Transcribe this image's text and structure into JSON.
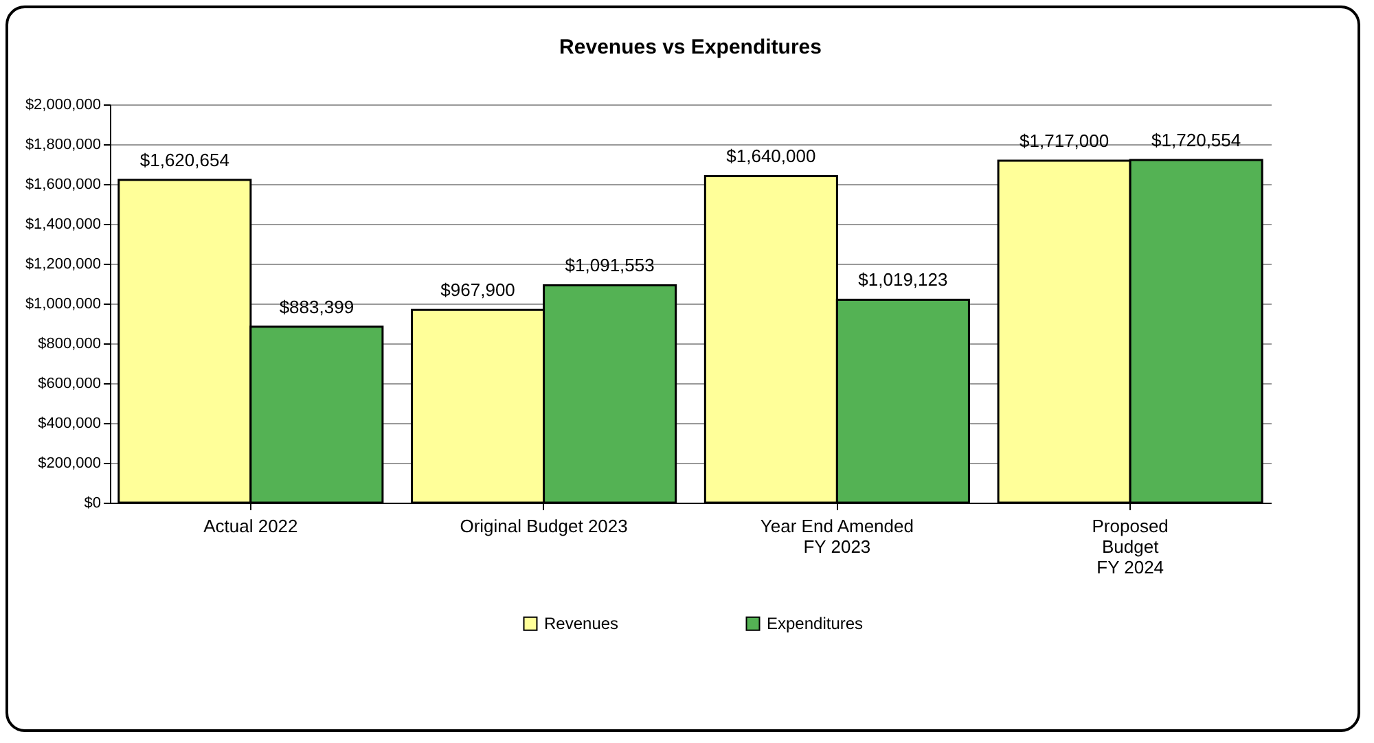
{
  "chart_data": {
    "type": "bar",
    "title": "Revenues vs Expenditures",
    "categories": [
      "Actual 2022",
      "Original Budget 2023",
      "Year End Amended\nFY 2023",
      "Proposed\nBudget\nFY 2024"
    ],
    "series": [
      {
        "name": "Revenues",
        "color": "#ffff99",
        "values": [
          1620654,
          967900,
          1640000,
          1717000
        ],
        "value_labels": [
          "$1,620,654",
          "$967,900",
          "$1,640,000",
          "$1,717,000"
        ]
      },
      {
        "name": "Expenditures",
        "color": "#54b254",
        "values": [
          883399,
          1091553,
          1019123,
          1720554
        ],
        "value_labels": [
          "$883,399",
          "$1,091,553",
          "$1,019,123",
          "$1,720,554"
        ]
      }
    ],
    "ylim": [
      0,
      2000000
    ],
    "yticks": [
      {
        "value": 0,
        "label": "$0"
      },
      {
        "value": 200000,
        "label": "$200,000"
      },
      {
        "value": 400000,
        "label": "$400,000"
      },
      {
        "value": 600000,
        "label": "$600,000"
      },
      {
        "value": 800000,
        "label": "$800,000"
      },
      {
        "value": 1000000,
        "label": "$1,000,000"
      },
      {
        "value": 1200000,
        "label": "$1,200,000"
      },
      {
        "value": 1400000,
        "label": "$1,400,000"
      },
      {
        "value": 1600000,
        "label": "$1,600,000"
      },
      {
        "value": 1800000,
        "label": "$1,800,000"
      },
      {
        "value": 2000000,
        "label": "$2,000,000"
      }
    ],
    "grid": "y",
    "legend": "bottom"
  }
}
